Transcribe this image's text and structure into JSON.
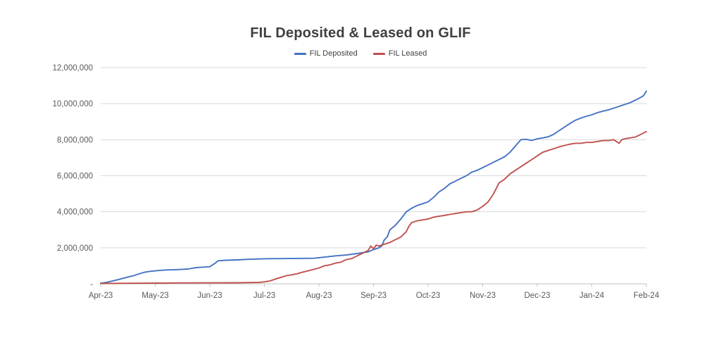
{
  "chart_data": {
    "type": "line",
    "title": "FIL Deposited & Leased on GLIF",
    "legend_position": "top",
    "grid": true,
    "x_unit": "months since Apr-23",
    "x_tick_labels": [
      "Apr-23",
      "May-23",
      "Jun-23",
      "Jul-23",
      "Aug-23",
      "Sep-23",
      "Oct-23",
      "Nov-23",
      "Dec-23",
      "Jan-24",
      "Feb-24"
    ],
    "ylim": [
      0,
      12000000
    ],
    "y_ticks": [
      0,
      2000000,
      4000000,
      6000000,
      8000000,
      10000000,
      12000000
    ],
    "y_zero_label": "-",
    "series": [
      {
        "name": "FIL Deposited",
        "color": "#4472c4",
        "points": [
          [
            0.0,
            30000
          ],
          [
            0.1,
            80000
          ],
          [
            0.2,
            150000
          ],
          [
            0.3,
            220000
          ],
          [
            0.4,
            300000
          ],
          [
            0.5,
            380000
          ],
          [
            0.6,
            450000
          ],
          [
            0.7,
            550000
          ],
          [
            0.8,
            640000
          ],
          [
            0.9,
            690000
          ],
          [
            1.0,
            720000
          ],
          [
            1.1,
            750000
          ],
          [
            1.2,
            770000
          ],
          [
            1.4,
            790000
          ],
          [
            1.6,
            820000
          ],
          [
            1.7,
            880000
          ],
          [
            1.8,
            910000
          ],
          [
            2.0,
            950000
          ],
          [
            2.05,
            1050000
          ],
          [
            2.1,
            1150000
          ],
          [
            2.15,
            1280000
          ],
          [
            2.3,
            1310000
          ],
          [
            2.5,
            1330000
          ],
          [
            2.7,
            1360000
          ],
          [
            3.0,
            1390000
          ],
          [
            3.3,
            1400000
          ],
          [
            3.6,
            1410000
          ],
          [
            3.9,
            1420000
          ],
          [
            4.1,
            1480000
          ],
          [
            4.3,
            1550000
          ],
          [
            4.5,
            1600000
          ],
          [
            4.7,
            1680000
          ],
          [
            4.9,
            1780000
          ],
          [
            5.0,
            1900000
          ],
          [
            5.1,
            2000000
          ],
          [
            5.15,
            2100000
          ],
          [
            5.2,
            2450000
          ],
          [
            5.25,
            2600000
          ],
          [
            5.3,
            3000000
          ],
          [
            5.4,
            3250000
          ],
          [
            5.5,
            3600000
          ],
          [
            5.6,
            4000000
          ],
          [
            5.7,
            4200000
          ],
          [
            5.8,
            4350000
          ],
          [
            5.9,
            4450000
          ],
          [
            6.0,
            4550000
          ],
          [
            6.1,
            4800000
          ],
          [
            6.2,
            5100000
          ],
          [
            6.3,
            5300000
          ],
          [
            6.4,
            5550000
          ],
          [
            6.5,
            5700000
          ],
          [
            6.6,
            5850000
          ],
          [
            6.7,
            6000000
          ],
          [
            6.8,
            6200000
          ],
          [
            6.9,
            6300000
          ],
          [
            7.0,
            6450000
          ],
          [
            7.1,
            6600000
          ],
          [
            7.2,
            6750000
          ],
          [
            7.3,
            6900000
          ],
          [
            7.4,
            7050000
          ],
          [
            7.5,
            7300000
          ],
          [
            7.6,
            7650000
          ],
          [
            7.7,
            8000000
          ],
          [
            7.8,
            8020000
          ],
          [
            7.9,
            7960000
          ],
          [
            8.0,
            8050000
          ],
          [
            8.1,
            8100000
          ],
          [
            8.2,
            8160000
          ],
          [
            8.3,
            8300000
          ],
          [
            8.4,
            8500000
          ],
          [
            8.5,
            8700000
          ],
          [
            8.6,
            8900000
          ],
          [
            8.7,
            9080000
          ],
          [
            8.8,
            9200000
          ],
          [
            8.9,
            9300000
          ],
          [
            9.0,
            9380000
          ],
          [
            9.1,
            9500000
          ],
          [
            9.2,
            9580000
          ],
          [
            9.3,
            9650000
          ],
          [
            9.4,
            9750000
          ],
          [
            9.5,
            9850000
          ],
          [
            9.6,
            9950000
          ],
          [
            9.7,
            10050000
          ],
          [
            9.8,
            10200000
          ],
          [
            9.9,
            10350000
          ],
          [
            9.95,
            10450000
          ],
          [
            10.0,
            10700000
          ]
        ]
      },
      {
        "name": "FIL Leased",
        "color": "#c0504d",
        "points": [
          [
            0.0,
            20000
          ],
          [
            0.5,
            30000
          ],
          [
            1.0,
            40000
          ],
          [
            1.5,
            50000
          ],
          [
            2.0,
            55000
          ],
          [
            2.5,
            60000
          ],
          [
            2.9,
            80000
          ],
          [
            3.0,
            110000
          ],
          [
            3.1,
            160000
          ],
          [
            3.2,
            260000
          ],
          [
            3.3,
            360000
          ],
          [
            3.4,
            450000
          ],
          [
            3.5,
            500000
          ],
          [
            3.6,
            560000
          ],
          [
            3.7,
            650000
          ],
          [
            3.8,
            720000
          ],
          [
            3.9,
            800000
          ],
          [
            4.0,
            880000
          ],
          [
            4.1,
            1000000
          ],
          [
            4.2,
            1050000
          ],
          [
            4.3,
            1150000
          ],
          [
            4.4,
            1200000
          ],
          [
            4.5,
            1350000
          ],
          [
            4.6,
            1400000
          ],
          [
            4.7,
            1550000
          ],
          [
            4.8,
            1700000
          ],
          [
            4.9,
            1850000
          ],
          [
            4.95,
            2100000
          ],
          [
            5.0,
            1950000
          ],
          [
            5.05,
            2150000
          ],
          [
            5.1,
            2100000
          ],
          [
            5.2,
            2200000
          ],
          [
            5.3,
            2300000
          ],
          [
            5.4,
            2450000
          ],
          [
            5.5,
            2600000
          ],
          [
            5.6,
            2900000
          ],
          [
            5.65,
            3200000
          ],
          [
            5.7,
            3400000
          ],
          [
            5.8,
            3500000
          ],
          [
            5.9,
            3550000
          ],
          [
            6.0,
            3600000
          ],
          [
            6.1,
            3700000
          ],
          [
            6.2,
            3750000
          ],
          [
            6.3,
            3800000
          ],
          [
            6.4,
            3850000
          ],
          [
            6.5,
            3900000
          ],
          [
            6.6,
            3950000
          ],
          [
            6.7,
            4000000
          ],
          [
            6.8,
            4000000
          ],
          [
            6.9,
            4100000
          ],
          [
            7.0,
            4300000
          ],
          [
            7.1,
            4550000
          ],
          [
            7.2,
            5000000
          ],
          [
            7.3,
            5600000
          ],
          [
            7.4,
            5800000
          ],
          [
            7.5,
            6100000
          ],
          [
            7.6,
            6300000
          ],
          [
            7.7,
            6500000
          ],
          [
            7.8,
            6700000
          ],
          [
            7.9,
            6900000
          ],
          [
            8.0,
            7100000
          ],
          [
            8.1,
            7300000
          ],
          [
            8.2,
            7400000
          ],
          [
            8.3,
            7500000
          ],
          [
            8.4,
            7600000
          ],
          [
            8.5,
            7680000
          ],
          [
            8.6,
            7750000
          ],
          [
            8.7,
            7800000
          ],
          [
            8.8,
            7800000
          ],
          [
            8.9,
            7850000
          ],
          [
            9.0,
            7850000
          ],
          [
            9.1,
            7900000
          ],
          [
            9.2,
            7950000
          ],
          [
            9.3,
            7950000
          ],
          [
            9.4,
            8000000
          ],
          [
            9.5,
            7800000
          ],
          [
            9.55,
            8000000
          ],
          [
            9.6,
            8050000
          ],
          [
            9.7,
            8100000
          ],
          [
            9.8,
            8150000
          ],
          [
            9.9,
            8300000
          ],
          [
            10.0,
            8450000
          ]
        ]
      }
    ]
  },
  "style_colors": {
    "grid": "#d9d9d9",
    "axis": "#bfbfbf",
    "title_text": "#3f3f3f",
    "tick_text": "#595959",
    "background": "#ffffff"
  }
}
